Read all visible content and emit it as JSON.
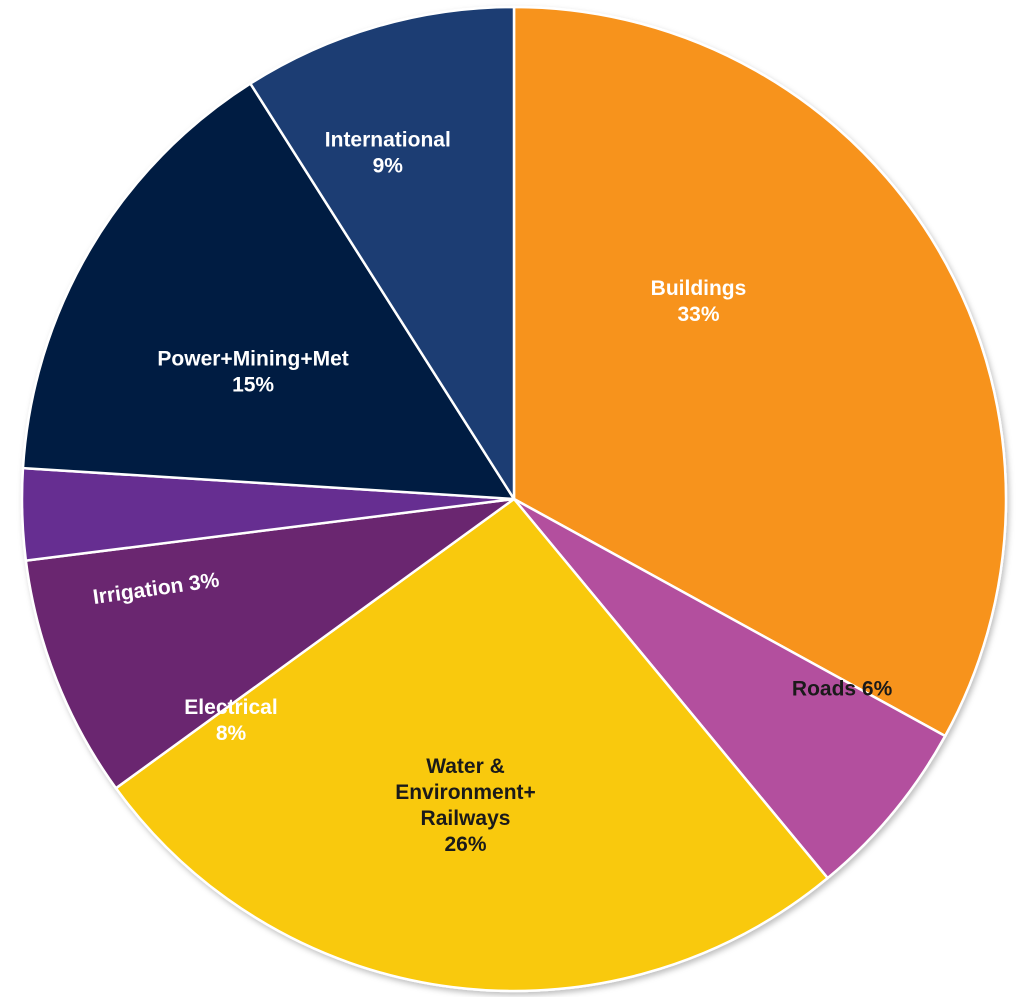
{
  "chart_data": {
    "type": "pie",
    "start_angle_deg": 0,
    "direction": "clockwise",
    "slices": [
      {
        "name": "Buildings",
        "value": 33,
        "color": "#F7931E",
        "label_color": "#ffffff",
        "label_lines": [
          "Buildings",
          "33%"
        ]
      },
      {
        "name": "Roads",
        "value": 6,
        "color": "#B34F9E",
        "label_color": "#1a1a1a",
        "label_lines": [
          "Roads 6%"
        ]
      },
      {
        "name": "Water & Environment+ Railways",
        "value": 26,
        "color": "#F9C90B",
        "label_color": "#1a1a1a",
        "label_lines": [
          "Water  &",
          "Environment+",
          "Railways",
          "26%"
        ]
      },
      {
        "name": "Electrical",
        "value": 8,
        "color": "#6B2770",
        "label_color": "#ffffff",
        "label_lines": [
          "Electrical",
          "8%"
        ]
      },
      {
        "name": "Irrigation",
        "value": 3,
        "color": "#662D91",
        "label_color": "#ffffff",
        "label_lines": [
          "Irrigation  3%"
        ]
      },
      {
        "name": "Power+Mining+Met",
        "value": 15,
        "color": "#041C42",
        "label_color": "#ffffff",
        "label_lines": [
          "Power+Mining+Met",
          "15%"
        ]
      },
      {
        "name": "International",
        "value": 9,
        "color": "#1A3E73",
        "label_color": "#ffffff",
        "label_lines": [
          "International",
          "9%"
        ]
      }
    ],
    "legend": "none"
  }
}
